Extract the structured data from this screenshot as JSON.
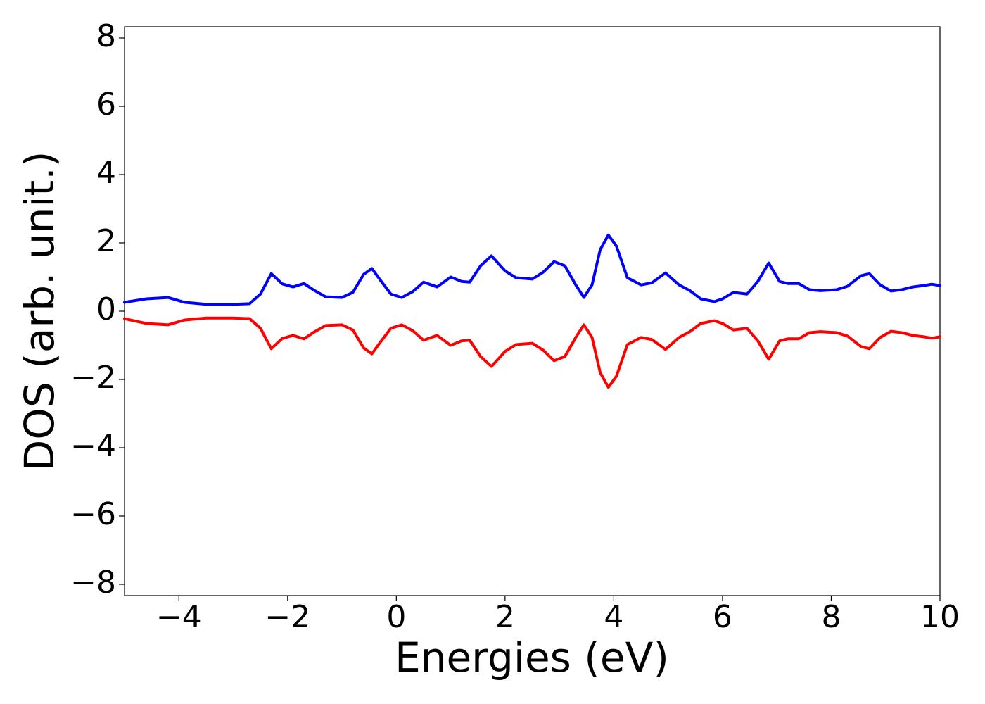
{
  "chart_data": {
    "type": "line",
    "xlabel": "Energies (eV)",
    "ylabel": "DOS (arb. unit.)",
    "x": [
      -5,
      -4.6,
      -4.2,
      -3.9,
      -3.5,
      -3,
      -2.7,
      -2.5,
      -2.3,
      -2.1,
      -1.9,
      -1.7,
      -1.5,
      -1.3,
      -1.0,
      -0.8,
      -0.6,
      -0.45,
      -0.3,
      -0.1,
      0.1,
      0.3,
      0.5,
      0.75,
      1.0,
      1.2,
      1.35,
      1.55,
      1.75,
      2.0,
      2.2,
      2.5,
      2.7,
      2.9,
      3.1,
      3.3,
      3.45,
      3.6,
      3.75,
      3.9,
      4.05,
      4.25,
      4.5,
      4.7,
      4.95,
      5.2,
      5.4,
      5.6,
      5.85,
      6.0,
      6.2,
      6.45,
      6.65,
      6.85,
      7.05,
      7.2,
      7.4,
      7.6,
      7.8,
      8.1,
      8.3,
      8.55,
      8.7,
      8.9,
      9.1,
      9.3,
      9.5,
      9.7,
      9.85,
      10
    ],
    "series": [
      {
        "color": "#0000ff",
        "values": [
          0.26,
          0.36,
          0.4,
          0.26,
          0.2,
          0.2,
          0.22,
          0.5,
          1.1,
          0.8,
          0.71,
          0.81,
          0.6,
          0.42,
          0.4,
          0.55,
          1.08,
          1.25,
          0.92,
          0.5,
          0.4,
          0.57,
          0.85,
          0.71,
          1.0,
          0.87,
          0.85,
          1.33,
          1.62,
          1.18,
          0.98,
          0.94,
          1.14,
          1.45,
          1.33,
          0.77,
          0.4,
          0.77,
          1.8,
          2.23,
          1.9,
          0.98,
          0.77,
          0.83,
          1.12,
          0.77,
          0.6,
          0.36,
          0.28,
          0.36,
          0.55,
          0.5,
          0.87,
          1.41,
          0.87,
          0.81,
          0.81,
          0.63,
          0.6,
          0.63,
          0.73,
          1.04,
          1.1,
          0.77,
          0.59,
          0.63,
          0.71,
          0.75,
          0.79,
          0.75
        ]
      },
      {
        "color": "#ff0000",
        "values": [
          -0.22,
          -0.36,
          -0.4,
          -0.26,
          -0.2,
          -0.2,
          -0.22,
          -0.5,
          -1.1,
          -0.8,
          -0.71,
          -0.81,
          -0.6,
          -0.42,
          -0.4,
          -0.55,
          -1.08,
          -1.25,
          -0.92,
          -0.5,
          -0.4,
          -0.57,
          -0.85,
          -0.71,
          -1.0,
          -0.87,
          -0.85,
          -1.33,
          -1.62,
          -1.18,
          -0.98,
          -0.94,
          -1.14,
          -1.45,
          -1.33,
          -0.77,
          -0.4,
          -0.77,
          -1.8,
          -2.23,
          -1.9,
          -0.98,
          -0.77,
          -0.83,
          -1.12,
          -0.77,
          -0.6,
          -0.36,
          -0.28,
          -0.36,
          -0.55,
          -0.5,
          -0.87,
          -1.41,
          -0.87,
          -0.81,
          -0.81,
          -0.63,
          -0.6,
          -0.63,
          -0.73,
          -1.04,
          -1.1,
          -0.77,
          -0.59,
          -0.63,
          -0.71,
          -0.75,
          -0.79,
          -0.75
        ]
      }
    ],
    "xlim": [
      -5,
      10
    ],
    "xticks": [
      {
        "value": -4,
        "label": "−4"
      },
      {
        "value": -2,
        "label": "−2"
      },
      0,
      2,
      4,
      6,
      8,
      10
    ],
    "ylim": [
      -8.33,
      8.33
    ],
    "yticks": [
      {
        "value": -8,
        "label": "−8"
      },
      {
        "value": -6,
        "label": "−6"
      },
      {
        "value": -4,
        "label": "−4"
      },
      {
        "value": -2,
        "label": "−2"
      },
      0,
      2,
      4,
      6,
      8
    ],
    "grid": false
  }
}
